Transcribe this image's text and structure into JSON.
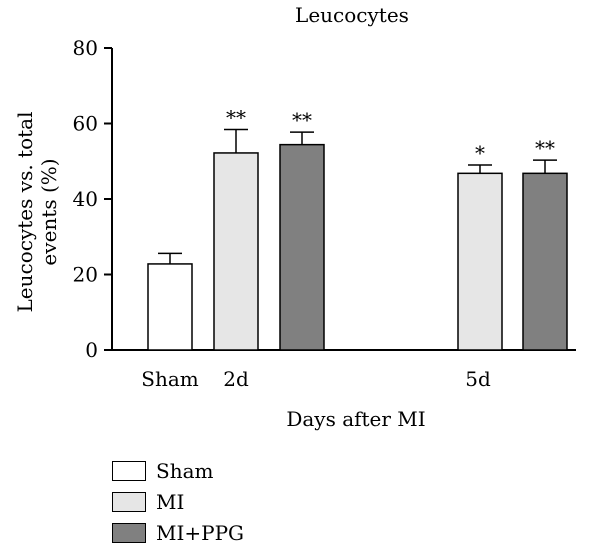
{
  "chart_data": {
    "type": "bar",
    "title": "Leucocytes",
    "ylabel": "Leucocytes vs. total events (%)",
    "ylabel_lines": [
      "Leucocytes vs. total",
      "events (%)"
    ],
    "xlabel": "Days after MI",
    "ylim": [
      0,
      80
    ],
    "yticks": [
      0,
      20,
      40,
      60,
      80
    ],
    "categories": [
      {
        "label": "Sham",
        "bars": [
          {
            "series": "Sham",
            "value": 22.8,
            "error": 2.8,
            "sig": ""
          }
        ]
      },
      {
        "label": "2d",
        "bars": [
          {
            "series": "MI",
            "value": 52.2,
            "error": 6.2,
            "sig": "**"
          },
          {
            "series": "MI+PPG",
            "value": 54.4,
            "error": 3.3,
            "sig": "**"
          }
        ]
      },
      {
        "label": "5d",
        "bars": [
          {
            "series": "MI",
            "value": 46.8,
            "error": 2.2,
            "sig": "*"
          },
          {
            "series": "MI+PPG",
            "value": 46.8,
            "error": 3.5,
            "sig": "**"
          }
        ]
      }
    ],
    "series": [
      {
        "name": "Sham",
        "color": "#ffffff"
      },
      {
        "name": "MI",
        "color": "#e6e6e6"
      },
      {
        "name": "MI+PPG",
        "color": "#808080"
      }
    ],
    "grid": false,
    "legend": "bottom-left"
  }
}
